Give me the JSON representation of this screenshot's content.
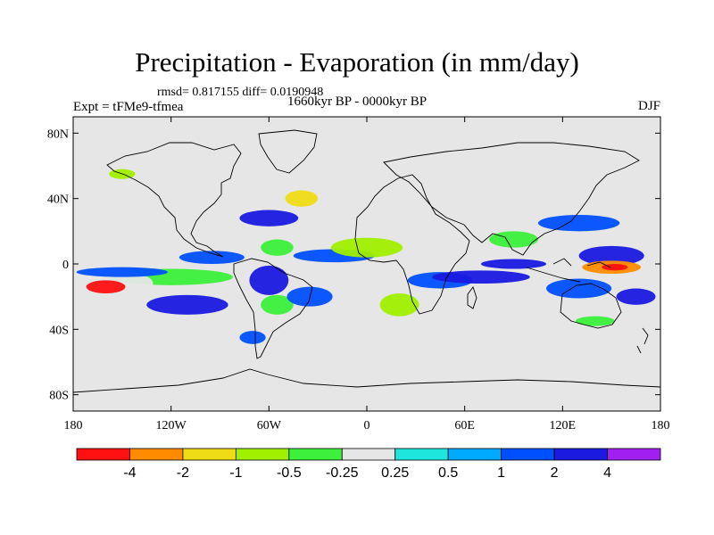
{
  "chart_data": {
    "type": "heatmap",
    "title": "Precipitation - Evaporation (in mm/day)",
    "stats": "rmsd= 0.817155 diff= 0.0190948",
    "left_label": "Expt = tFMe9-tfmea",
    "center_label": "1660kyr BP - 0000kyr BP",
    "right_label": "DJF",
    "x_ticks": [
      "180",
      "120W",
      "60W",
      "0",
      "60E",
      "120E",
      "180"
    ],
    "x_tick_values": [
      -180,
      -120,
      -60,
      0,
      60,
      120,
      180
    ],
    "y_ticks": [
      "80N",
      "40N",
      "0",
      "40S",
      "80S"
    ],
    "y_tick_values": [
      80,
      40,
      0,
      -40,
      -80
    ],
    "xlim": [
      -180,
      180
    ],
    "ylim": [
      -90,
      90
    ],
    "colorbar": {
      "labels": [
        "-4",
        "-2",
        "-1",
        "-0.5",
        "-0.25",
        "0.25",
        "0.5",
        "1",
        "2",
        "4"
      ],
      "colors": [
        "#ff1010",
        "#ff8c00",
        "#f0dc14",
        "#a0f000",
        "#3cf03c",
        "#e6e6e6",
        "#1ee6dc",
        "#00aaff",
        "#0050ff",
        "#1a1ae0",
        "#a020f0"
      ]
    },
    "regions": [
      {
        "lon": -120,
        "lat": -8,
        "rx": 38,
        "ry": 5,
        "level": 4
      },
      {
        "lon": -155,
        "lat": -12,
        "rx": 24,
        "ry": 8,
        "level": 5
      },
      {
        "lon": -160,
        "lat": -14,
        "rx": 12,
        "ry": 4,
        "level": 0
      },
      {
        "lon": -150,
        "lat": -5,
        "rx": 28,
        "ry": 3,
        "level": 8
      },
      {
        "lon": -95,
        "lat": 4,
        "rx": 20,
        "ry": 4,
        "level": 8
      },
      {
        "lon": -110,
        "lat": -25,
        "rx": 25,
        "ry": 6,
        "level": 9
      },
      {
        "lon": -60,
        "lat": -10,
        "rx": 12,
        "ry": 9,
        "level": 9
      },
      {
        "lon": -55,
        "lat": -25,
        "rx": 10,
        "ry": 6,
        "level": 4
      },
      {
        "lon": -35,
        "lat": -20,
        "rx": 14,
        "ry": 6,
        "level": 8
      },
      {
        "lon": -55,
        "lat": 10,
        "rx": 10,
        "ry": 5,
        "level": 4
      },
      {
        "lon": -60,
        "lat": 28,
        "rx": 18,
        "ry": 5,
        "level": 9
      },
      {
        "lon": -40,
        "lat": 40,
        "rx": 10,
        "ry": 5,
        "level": 2
      },
      {
        "lon": -20,
        "lat": 5,
        "rx": 25,
        "ry": 4,
        "level": 8
      },
      {
        "lon": 0,
        "lat": 10,
        "rx": 22,
        "ry": 6,
        "level": 3
      },
      {
        "lon": 20,
        "lat": -25,
        "rx": 12,
        "ry": 7,
        "level": 3
      },
      {
        "lon": 45,
        "lat": -10,
        "rx": 20,
        "ry": 5,
        "level": 8
      },
      {
        "lon": 70,
        "lat": -8,
        "rx": 30,
        "ry": 4,
        "level": 9
      },
      {
        "lon": 90,
        "lat": 0,
        "rx": 20,
        "ry": 3,
        "level": 9
      },
      {
        "lon": 90,
        "lat": 15,
        "rx": 15,
        "ry": 5,
        "level": 4
      },
      {
        "lon": 130,
        "lat": 25,
        "rx": 25,
        "ry": 5,
        "level": 8
      },
      {
        "lon": 150,
        "lat": 5,
        "rx": 20,
        "ry": 6,
        "level": 9
      },
      {
        "lon": 150,
        "lat": -2,
        "rx": 18,
        "ry": 4,
        "level": 1
      },
      {
        "lon": 152,
        "lat": -2,
        "rx": 8,
        "ry": 2,
        "level": 0
      },
      {
        "lon": 130,
        "lat": -15,
        "rx": 20,
        "ry": 6,
        "level": 8
      },
      {
        "lon": 165,
        "lat": -20,
        "rx": 12,
        "ry": 5,
        "level": 9
      },
      {
        "lon": -150,
        "lat": 55,
        "rx": 8,
        "ry": 3,
        "level": 3
      },
      {
        "lon": -70,
        "lat": -45,
        "rx": 8,
        "ry": 4,
        "level": 8
      },
      {
        "lon": 140,
        "lat": -35,
        "rx": 12,
        "ry": 3,
        "level": 4
      }
    ]
  }
}
